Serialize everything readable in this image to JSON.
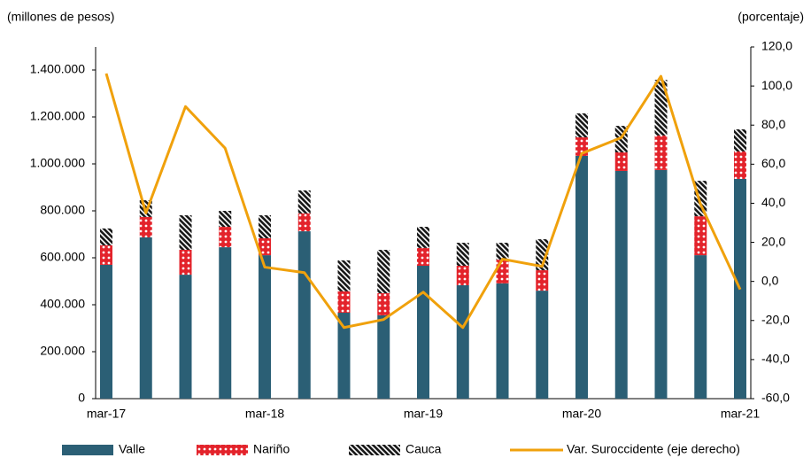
{
  "chart_data": {
    "type": "bar",
    "stacked": true,
    "y_label": "(millones  de pesos)",
    "y2_label": "(porcentaje)",
    "categories": [
      "mar-17",
      null,
      null,
      null,
      "mar-18",
      null,
      null,
      null,
      "mar-19",
      null,
      null,
      null,
      "mar-20",
      null,
      null,
      null,
      "mar-21"
    ],
    "series": [
      {
        "name": "Valle",
        "color": "#2b5f75",
        "values": [
          570000,
          687000,
          528000,
          645000,
          611000,
          713000,
          366000,
          355000,
          566000,
          483000,
          491000,
          460000,
          1034000,
          970000,
          974000,
          611000,
          936000
        ]
      },
      {
        "name": "Nariño",
        "color": "#e3232b",
        "values": [
          83000,
          87000,
          106000,
          87000,
          72000,
          76000,
          91000,
          94000,
          76000,
          83000,
          101000,
          87000,
          79000,
          79000,
          147000,
          166000,
          117000
        ]
      },
      {
        "name": "Cauca",
        "color": "#1a1a1a",
        "values": [
          72000,
          71000,
          147000,
          68000,
          98000,
          98000,
          132000,
          185000,
          90000,
          98000,
          72000,
          132000,
          102000,
          113000,
          237000,
          151000,
          94000
        ]
      },
      {
        "name": "Var. Suroccidente (eje derecho)",
        "type": "line",
        "axis": "y2",
        "color": "#f0a10c",
        "values": [
          106.4,
          35.0,
          89.5,
          68.2,
          7.3,
          4.5,
          -23.6,
          -19.5,
          -5.5,
          -23.6,
          11.4,
          7.7,
          65.5,
          73.6,
          105.0,
          39.5,
          -4.1
        ]
      }
    ],
    "ylim": [
      0,
      1400000
    ],
    "yticks": [
      0,
      {
        "value": 200000,
        "label": "200.000"
      },
      {
        "value": 400000,
        "label": "400.000"
      },
      {
        "value": 600000,
        "label": "600.000"
      },
      {
        "value": 800000,
        "label": "800.000"
      },
      {
        "value": 1000000,
        "label": "1.000.000"
      },
      {
        "value": 1200000,
        "label": "1.200.000"
      },
      {
        "value": 1400000,
        "label": "1.400.000"
      }
    ],
    "y2lim": [
      -60,
      120
    ],
    "y2ticks": [
      {
        "value": -60,
        "label": "-60,0"
      },
      {
        "value": -40,
        "label": "-40,0"
      },
      {
        "value": -20,
        "label": "-20,0"
      },
      {
        "value": 0,
        "label": "0,0"
      },
      {
        "value": 20,
        "label": "20,0"
      },
      {
        "value": 40,
        "label": "40,0"
      },
      {
        "value": 60,
        "label": "60,0"
      },
      {
        "value": 80,
        "label": "80,0"
      },
      {
        "value": 100,
        "label": "100,0"
      },
      {
        "value": 120,
        "label": "120,0"
      }
    ],
    "grid": false,
    "legend": "bottom"
  }
}
